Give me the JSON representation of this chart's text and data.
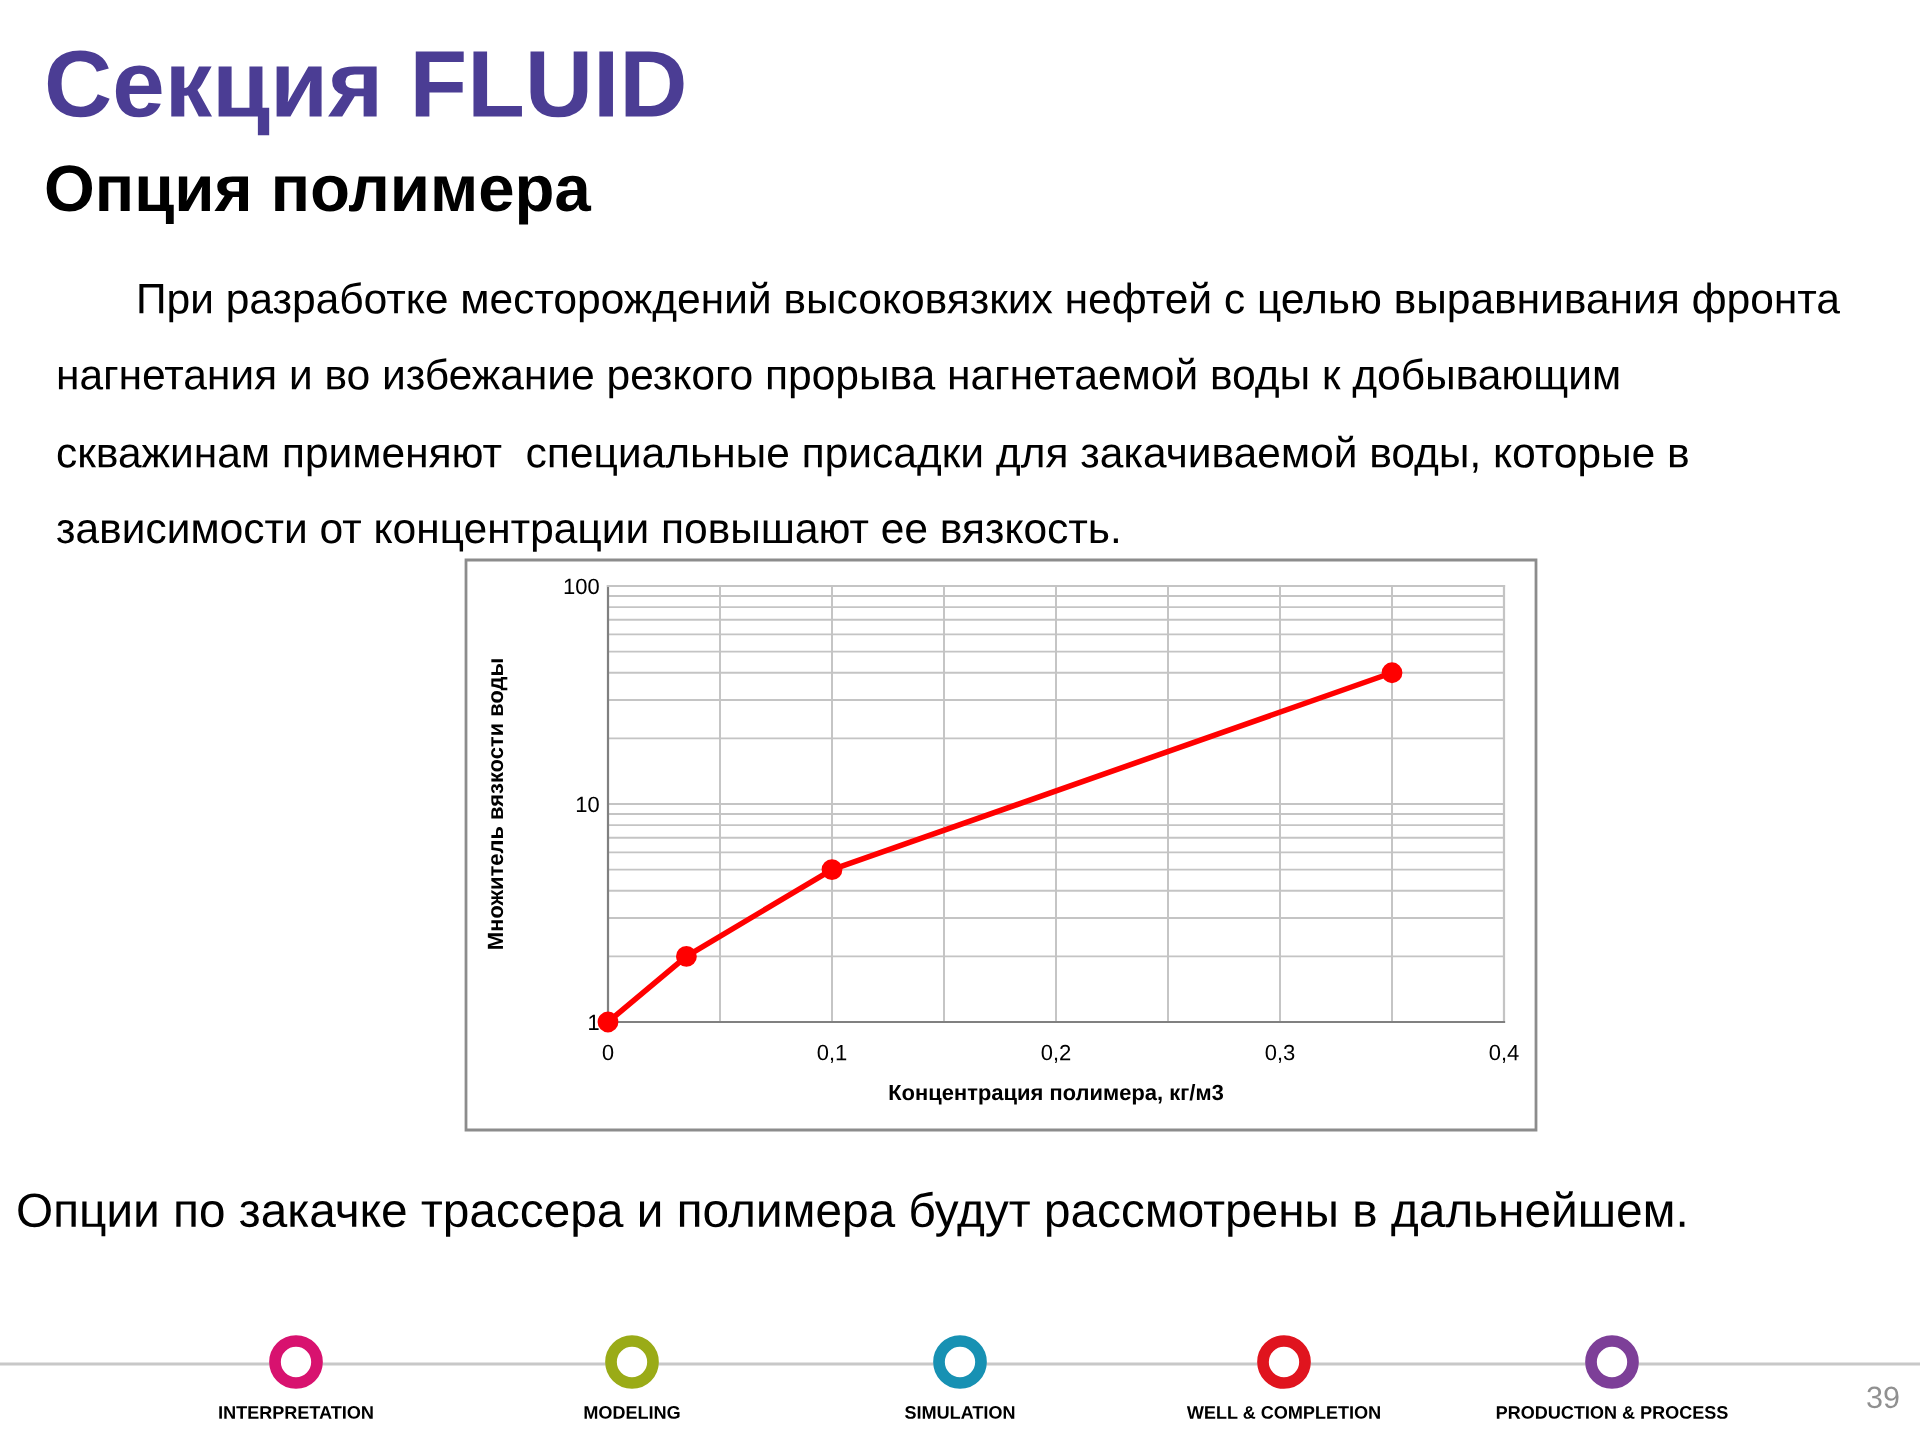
{
  "chart_data": {
    "type": "line",
    "title": "Секция FLUID",
    "subtitle": "Опция полимера",
    "xlabel": "Концентрация полимера, кг/м3",
    "ylabel": "Множитель вязкости воды",
    "x": [
      0,
      0.035,
      0.1,
      0.35
    ],
    "series": [
      {
        "color": "#ff0000",
        "values": [
          1,
          2,
          5,
          40
        ]
      }
    ],
    "marker": "circle",
    "line_style": "solid",
    "log": true,
    "grid": true,
    "xlim": [
      0,
      0.4
    ],
    "ylim": [
      1,
      100
    ],
    "xticks": [
      0,
      {
        "value": 0.05,
        "label": null
      },
      {
        "value": 0.1,
        "label": "0,1"
      },
      {
        "value": 0.15,
        "label": null
      },
      {
        "value": 0.2,
        "label": "0,2"
      },
      {
        "value": 0.25,
        "label": null
      },
      {
        "value": 0.3,
        "label": "0,3"
      },
      {
        "value": 0.35,
        "label": null
      },
      {
        "value": 0.4,
        "label": "0,4"
      }
    ],
    "yticks": [
      1,
      {
        "value": 2,
        "label": null
      },
      {
        "value": 3,
        "label": null
      },
      {
        "value": 4,
        "label": null
      },
      {
        "value": 5,
        "label": null
      },
      {
        "value": 6,
        "label": null
      },
      {
        "value": 7,
        "label": null
      },
      {
        "value": 8,
        "label": null
      },
      {
        "value": 9,
        "label": null
      },
      10,
      {
        "value": 20,
        "label": null
      },
      {
        "value": 30,
        "label": null
      },
      {
        "value": 40,
        "label": null
      },
      {
        "value": 50,
        "label": null
      },
      {
        "value": 60,
        "label": null
      },
      {
        "value": 70,
        "label": null
      },
      {
        "value": 80,
        "label": null
      },
      {
        "value": 90,
        "label": null
      },
      100
    ],
    "annotations": [
      "При разработке месторождений высоковязких нефтей с целью выравнивания фронта",
      "нагнетания и во избежание резкого прорыва нагнетаемой воды к добывающим",
      "скважинам применяют  специальные присадки для закачиваемой воды, которые в",
      "зависимости от концентрации повышают ее вязкость.",
      "Опции по закачке трассера и полимера будут рассмотрены в дальнейшем.",
      "INTERPRETATION",
      "MODELING",
      "SIMULATION",
      "WELL & COMPLETION",
      "PRODUCTION & PROCESS",
      "39"
    ]
  }
}
